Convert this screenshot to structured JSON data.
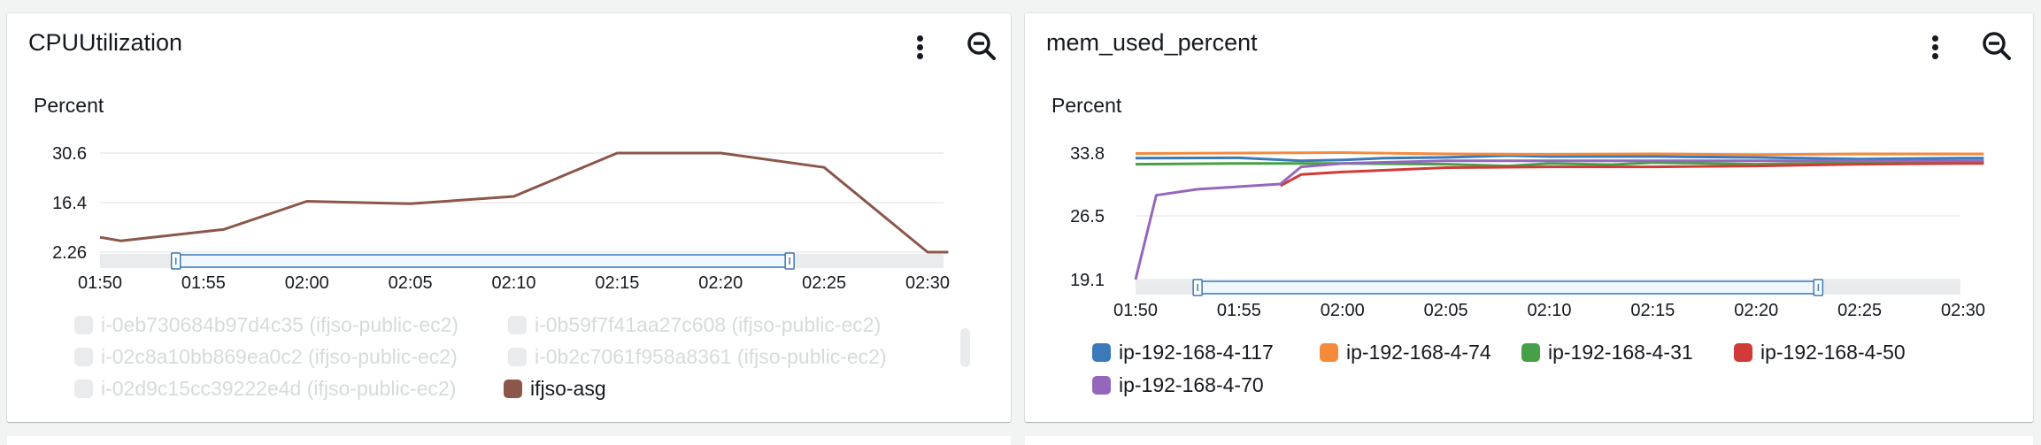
{
  "panels": [
    {
      "title": "CPUUtilization",
      "unit_label": "Percent",
      "legend": [
        {
          "label": "i-0eb730684b97d4c35 (ifjso-public-ec2)",
          "color": "#e9ebed",
          "active": false
        },
        {
          "label": "i-0b59f7f41aa27c608 (ifjso-public-ec2)",
          "color": "#e9ebed",
          "active": false
        },
        {
          "label": "i-02c8a10bb869ea0c2 (ifjso-public-ec2)",
          "color": "#e9ebed",
          "active": false
        },
        {
          "label": "i-0b2c7061f958a8361 (ifjso-public-ec2)",
          "color": "#e9ebed",
          "active": false
        },
        {
          "label": "i-02d9c15cc39222e4d (ifjso-public-ec2)",
          "color": "#e9ebed",
          "active": false
        },
        {
          "label": "ifjso-asg",
          "color": "#8c564b",
          "active": true
        }
      ]
    },
    {
      "title": "mem_used_percent",
      "unit_label": "Percent",
      "legend": [
        {
          "label": "ip-192-168-4-117",
          "color": "#3b79b8",
          "active": true
        },
        {
          "label": "ip-192-168-4-74",
          "color": "#f58a3b",
          "active": true
        },
        {
          "label": "ip-192-168-4-31",
          "color": "#47a047",
          "active": true
        },
        {
          "label": "ip-192-168-4-50",
          "color": "#d13a37",
          "active": true
        },
        {
          "label": "ip-192-168-4-70",
          "color": "#9467bd",
          "active": true
        }
      ]
    }
  ],
  "icons": {
    "menu": "vertical-ellipsis-icon",
    "zoom": "zoom-out-icon"
  },
  "chart_data": [
    {
      "type": "line",
      "title": "CPUUtilization",
      "ylabel": "Percent",
      "x_ticks": [
        "01:50",
        "01:55",
        "02:00",
        "02:05",
        "02:10",
        "02:15",
        "02:20",
        "02:25",
        "02:30"
      ],
      "y_ticks": [
        "2.26",
        "16.4",
        "30.6"
      ],
      "xlim": [
        "01:50",
        "02:30"
      ],
      "ylim": [
        2.26,
        30.6
      ],
      "brush": [
        "01:53:40",
        "02:23:20"
      ],
      "grid": true,
      "legend_position": "bottom",
      "series": [
        {
          "name": "ifjso-asg",
          "color": "#8c564b",
          "x": [
            "01:50",
            "01:51",
            "01:56",
            "02:00",
            "02:05",
            "02:10",
            "02:15",
            "02:20",
            "02:25",
            "02:30",
            "02:31"
          ],
          "values": [
            6.5,
            5.5,
            8.8,
            16.8,
            16.1,
            18.2,
            30.6,
            30.6,
            26.5,
            2.26,
            2.26
          ]
        }
      ]
    },
    {
      "type": "line",
      "title": "mem_used_percent",
      "ylabel": "Percent",
      "x_ticks": [
        "01:50",
        "01:55",
        "02:00",
        "02:05",
        "02:10",
        "02:15",
        "02:20",
        "02:25",
        "02:30"
      ],
      "y_ticks": [
        "19.1",
        "26.5",
        "33.8"
      ],
      "xlim": [
        "01:50",
        "02:30"
      ],
      "ylim": [
        19.1,
        33.8
      ],
      "brush": [
        "01:53:00",
        "02:23:00"
      ],
      "grid": true,
      "legend_position": "bottom",
      "series": [
        {
          "name": "ip-192-168-4-117",
          "color": "#3b79b8",
          "x": [
            "01:50",
            "01:55",
            "01:58",
            "02:00",
            "02:02",
            "02:05",
            "02:08",
            "02:10",
            "02:15",
            "02:20",
            "02:25",
            "02:30",
            "02:31"
          ],
          "values": [
            33.2,
            33.25,
            32.9,
            33.0,
            33.2,
            33.3,
            33.5,
            33.4,
            33.4,
            33.3,
            33.1,
            33.2,
            33.2
          ]
        },
        {
          "name": "ip-192-168-4-74",
          "color": "#f58a3b",
          "x": [
            "01:50",
            "01:55",
            "02:00",
            "02:05",
            "02:10",
            "02:15",
            "02:20",
            "02:25",
            "02:30",
            "02:31"
          ],
          "values": [
            33.75,
            33.8,
            33.85,
            33.7,
            33.65,
            33.7,
            33.6,
            33.7,
            33.7,
            33.7
          ]
        },
        {
          "name": "ip-192-168-4-31",
          "color": "#47a047",
          "x": [
            "01:50",
            "01:55",
            "02:00",
            "02:05",
            "02:08",
            "02:10",
            "02:13",
            "02:15",
            "02:20",
            "02:25",
            "02:30",
            "02:31"
          ],
          "values": [
            32.5,
            32.6,
            32.6,
            32.5,
            32.3,
            32.6,
            32.45,
            32.7,
            32.5,
            32.7,
            32.75,
            32.75
          ]
        },
        {
          "name": "ip-192-168-4-50",
          "color": "#d13a37",
          "x": [
            "01:57",
            "01:58",
            "02:00",
            "02:05",
            "02:10",
            "02:15",
            "02:20",
            "02:25",
            "02:30",
            "02:31"
          ],
          "values": [
            30.0,
            31.3,
            31.6,
            32.1,
            32.2,
            32.2,
            32.3,
            32.5,
            32.6,
            32.6
          ]
        },
        {
          "name": "ip-192-168-4-70",
          "color": "#9467bd",
          "x": [
            "01:50",
            "01:51",
            "01:53",
            "01:57",
            "01:58",
            "02:00",
            "02:05",
            "02:10",
            "02:15",
            "02:20",
            "02:25",
            "02:30",
            "02:31"
          ],
          "values": [
            19.1,
            28.9,
            29.6,
            30.2,
            32.2,
            32.6,
            32.9,
            32.9,
            32.9,
            32.9,
            32.9,
            32.9,
            32.9
          ]
        }
      ]
    }
  ]
}
